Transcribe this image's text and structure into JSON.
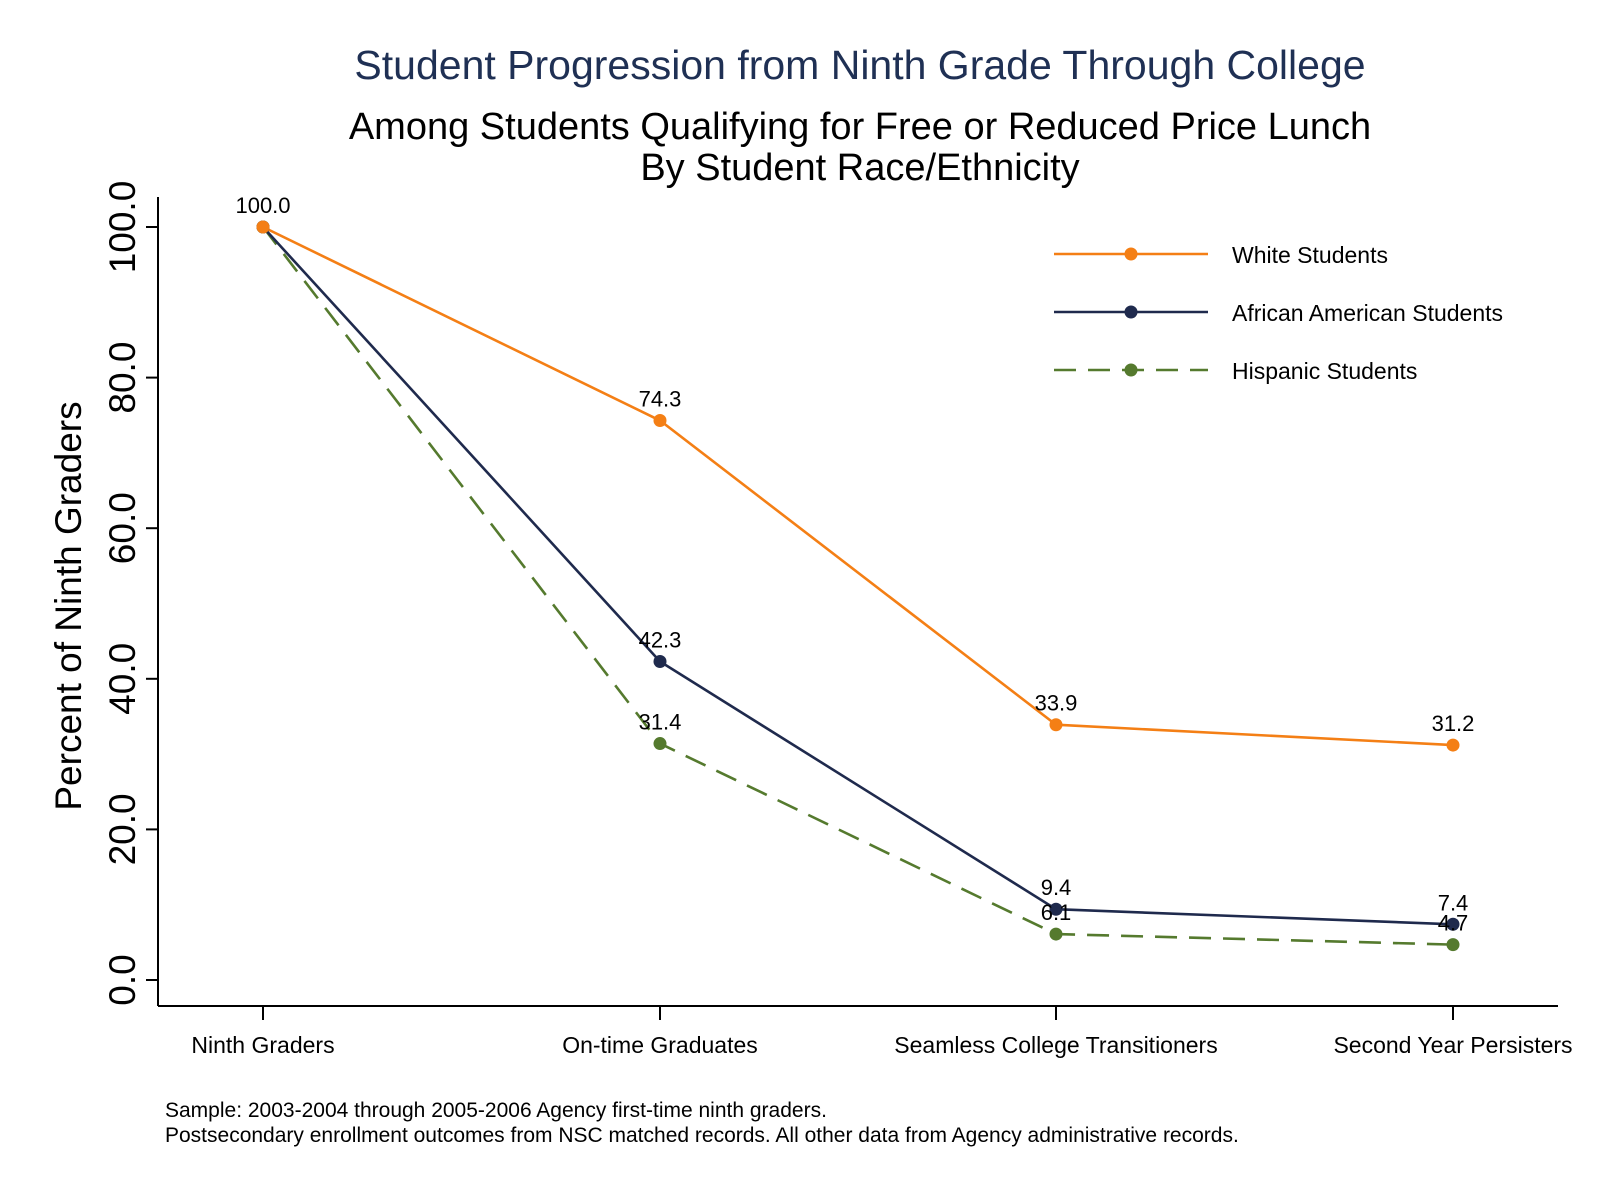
{
  "chart_data": {
    "type": "line",
    "title": "Student Progression from Ninth Grade Through College",
    "subtitle": [
      "Among Students Qualifying for Free or Reduced Price Lunch",
      "By Student Race/Ethnicity"
    ],
    "ylabel": "Percent of Ninth Graders",
    "xlabel": "",
    "categories": [
      "Ninth Graders",
      "On-time Graduates",
      "Seamless College Transitioners",
      "Second Year Persisters"
    ],
    "ylim": [
      0,
      100
    ],
    "yticks": [
      "0.0",
      "20.0",
      "40.0",
      "60.0",
      "80.0",
      "100.0"
    ],
    "grid": false,
    "legend_position": "top-right",
    "series": [
      {
        "name": "White Students",
        "values": [
          100.0,
          74.3,
          33.9,
          31.2
        ],
        "labels": [
          "100.0",
          "74.3",
          "33.9",
          "31.2"
        ],
        "color": "#f47f15",
        "dash": "solid"
      },
      {
        "name": "African American Students",
        "values": [
          100.0,
          42.3,
          9.4,
          7.4
        ],
        "labels": [
          "",
          "42.3",
          "9.4",
          "7.4"
        ],
        "color": "#1f2a4d",
        "dash": "solid"
      },
      {
        "name": "Hispanic Students",
        "values": [
          100.0,
          31.4,
          6.1,
          4.7
        ],
        "labels": [
          "",
          "31.4",
          "6.1",
          "4.7"
        ],
        "color": "#557a2e",
        "dash": "dashed"
      }
    ],
    "notes": [
      "Sample: 2003-2004 through 2005-2006 Agency first-time ninth graders.",
      "Postsecondary enrollment outcomes from NSC matched records. All other data from Agency administrative records."
    ]
  }
}
